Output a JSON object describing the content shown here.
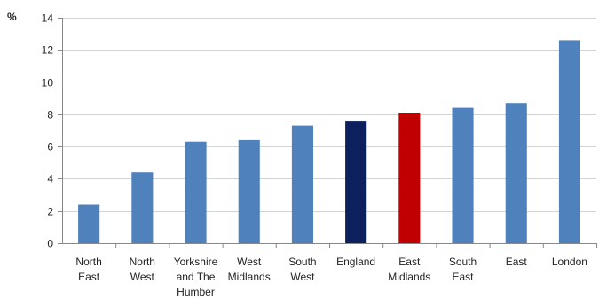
{
  "chart_data": {
    "type": "bar",
    "title": "",
    "xlabel": "",
    "ylabel": "%",
    "ylim": [
      0,
      14
    ],
    "yticks": [
      0,
      2,
      4,
      6,
      8,
      10,
      12,
      14
    ],
    "grid": true,
    "legend": "none",
    "categories": [
      [
        "North",
        "East"
      ],
      [
        "North",
        "West"
      ],
      [
        "Yorkshire",
        "and The",
        "Humber"
      ],
      [
        "West",
        "Midlands"
      ],
      [
        "South",
        "West"
      ],
      [
        "England"
      ],
      [
        "East",
        "Midlands"
      ],
      [
        "South",
        "East"
      ],
      [
        "East"
      ],
      [
        "London"
      ]
    ],
    "values": [
      2.4,
      4.4,
      6.3,
      6.4,
      7.3,
      7.6,
      8.1,
      8.4,
      8.7,
      12.6
    ],
    "bar_colors": [
      "#4F81BD",
      "#4F81BD",
      "#4F81BD",
      "#4F81BD",
      "#4F81BD",
      "#0D1F5C",
      "#C00000",
      "#4F81BD",
      "#4F81BD",
      "#4F81BD"
    ]
  }
}
